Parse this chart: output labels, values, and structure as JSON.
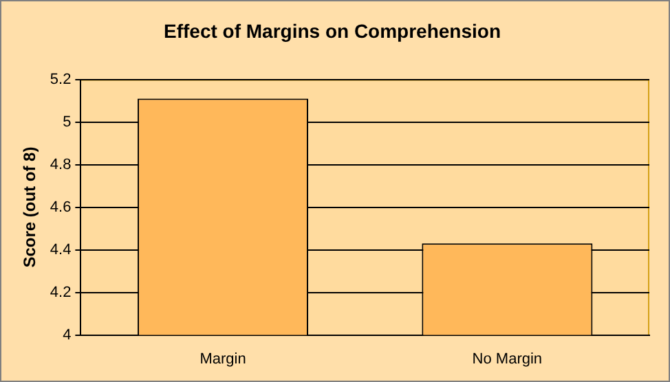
{
  "chart_data": {
    "type": "bar",
    "title": "Effect of Margins on Comprehension",
    "ylabel": "Score (out of 8)",
    "categories": [
      "Margin",
      "No Margin"
    ],
    "series": [
      {
        "color": "#ffb85a",
        "values": [
          5.11,
          4.43
        ]
      }
    ],
    "ylim": [
      4,
      5.2
    ],
    "yticks": [
      4,
      4.2,
      4.4,
      4.6,
      4.8,
      5,
      5.2
    ],
    "grid": "y",
    "legend": false
  }
}
